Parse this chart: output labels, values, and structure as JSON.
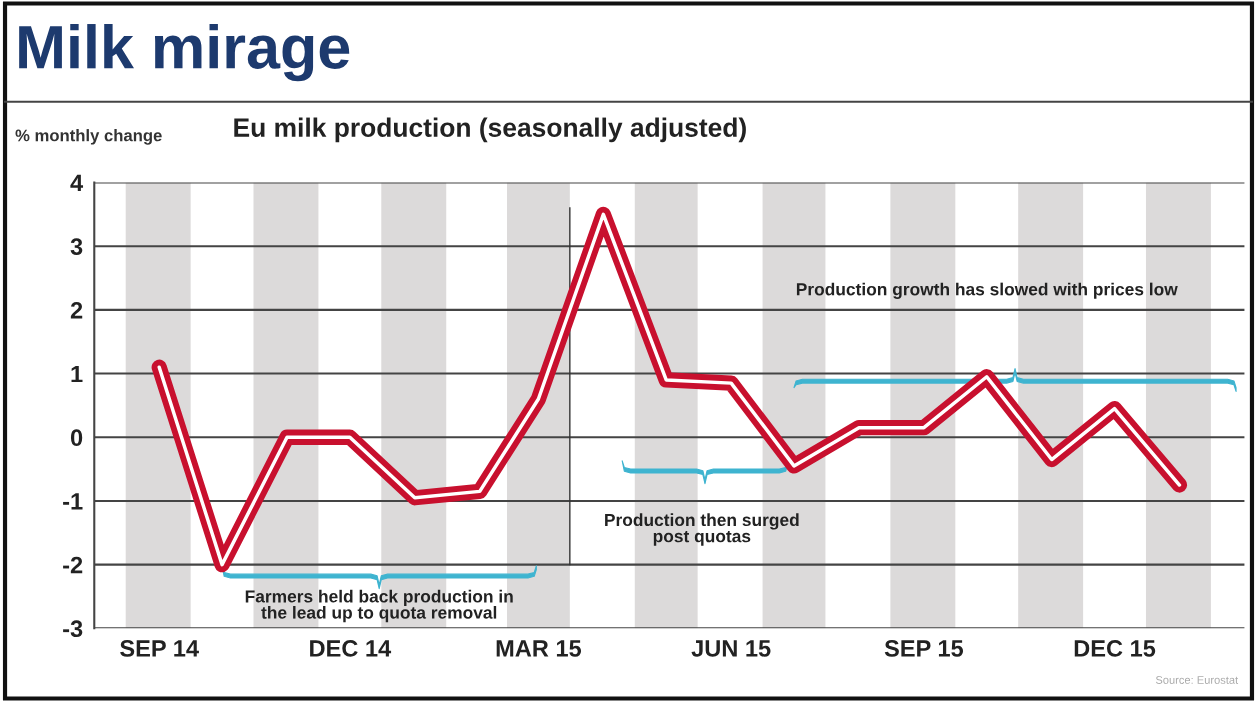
{
  "chart_data": {
    "type": "line",
    "title": "Milk mirage",
    "subtitle": "Eu milk production (seasonally adjusted)",
    "ylabel": "% monthly change",
    "x": [
      "2014-09",
      "2014-10",
      "2014-11",
      "2014-12",
      "2015-01",
      "2015-02",
      "2015-03",
      "2015-04",
      "2015-05",
      "2015-06",
      "2015-07",
      "2015-08",
      "2015-09",
      "2015-10",
      "2015-11",
      "2015-12",
      "2016-01"
    ],
    "series": [
      {
        "color": "#c8102e",
        "values": [
          1.1,
          -2.0,
          0.0,
          0.0,
          -0.95,
          -0.85,
          0.6,
          3.5,
          0.9,
          0.85,
          -0.45,
          0.15,
          0.15,
          0.95,
          -0.35,
          0.45,
          -0.75
        ]
      }
    ],
    "xlim": [
      "2014-08-01",
      "2016-02-01"
    ],
    "xticks": [
      {
        "value": "2014-09",
        "label": "SEP 14"
      },
      {
        "value": "2014-12",
        "label": "DEC 14"
      },
      {
        "value": "2015-03",
        "label": "MAR 15"
      },
      {
        "value": "2015-06",
        "label": "JUN 15"
      },
      {
        "value": "2015-09",
        "label": "SEP 15"
      },
      {
        "value": "2015-12",
        "label": "DEC 15"
      }
    ],
    "ylim": [
      -3,
      4
    ],
    "yticks": [
      -3,
      -2,
      -1,
      0,
      1,
      2,
      3,
      4
    ],
    "grid": "y",
    "marker": "none",
    "line_style": "solid",
    "ref_lines": [
      {
        "axis": "x",
        "value": "2015-03-16",
        "color": "#333333"
      }
    ],
    "bands": [
      {
        "axis": "x",
        "from": "2014-08-16",
        "to": "2014-09-16",
        "color": "#dcdada"
      },
      {
        "axis": "x",
        "from": "2014-10-16",
        "to": "2014-11-16",
        "color": "#dcdada"
      },
      {
        "axis": "x",
        "from": "2014-12-16",
        "to": "2015-01-16",
        "color": "#dcdada"
      },
      {
        "axis": "x",
        "from": "2015-02-14",
        "to": "2015-03-16",
        "color": "#dcdada"
      },
      {
        "axis": "x",
        "from": "2015-04-16",
        "to": "2015-05-16",
        "color": "#dcdada"
      },
      {
        "axis": "x",
        "from": "2015-06-16",
        "to": "2015-07-16",
        "color": "#dcdada"
      },
      {
        "axis": "x",
        "from": "2015-08-16",
        "to": "2015-09-16",
        "color": "#dcdada"
      },
      {
        "axis": "x",
        "from": "2015-10-16",
        "to": "2015-11-16",
        "color": "#dcdada"
      },
      {
        "axis": "x",
        "from": "2015-12-16",
        "to": "2016-01-16",
        "color": "#dcdada"
      }
    ],
    "annotations": [
      "Farmers held back production in\nthe lead up to quota removal",
      "Production then surged\npost quotas",
      "Production growth has slowed with prices low",
      "Source: Eurostat"
    ]
  }
}
